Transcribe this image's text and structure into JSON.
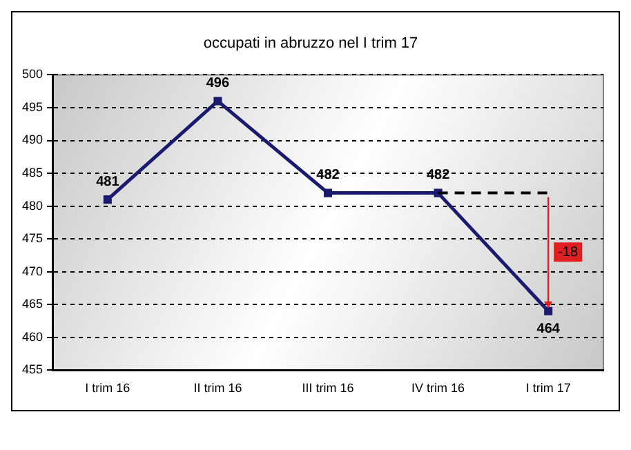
{
  "chart_data": {
    "type": "line",
    "title": "occupati in abruzzo nel I trim 17",
    "categories": [
      "I trim 16",
      "II trim 16",
      "III trim 16",
      "IV trim 16",
      "I trim 17"
    ],
    "series": [
      {
        "color": "#1a1a6e",
        "values": [
          481,
          496,
          482,
          482,
          464
        ]
      }
    ],
    "ylim": [
      455,
      500
    ],
    "yticks": [
      455,
      460,
      465,
      470,
      475,
      480,
      485,
      490,
      495,
      500
    ],
    "grid": "y",
    "marker": "square",
    "line_style": "solid",
    "data_labels": true,
    "legend": false,
    "annotations": [
      "-18"
    ]
  }
}
